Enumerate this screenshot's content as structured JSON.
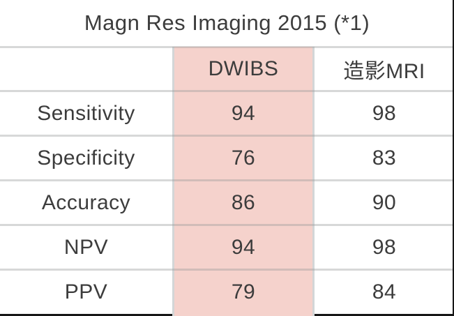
{
  "title": "Magn Res Imaging 2015 (*1)",
  "chart_data": {
    "type": "table",
    "title": "Magn Res Imaging 2015 (*1)",
    "columns": [
      "DWIBS",
      "造影MRI"
    ],
    "row_labels": [
      "Sensitivity",
      "Specificity",
      "Accuracy",
      "NPV",
      "PPV"
    ],
    "series": [
      {
        "name": "DWIBS",
        "values": [
          94,
          76,
          86,
          94,
          79
        ],
        "highlighted": true
      },
      {
        "name": "造影MRI",
        "values": [
          98,
          83,
          90,
          98,
          84
        ],
        "highlighted": false
      }
    ],
    "layout": {
      "highlight_column": "DWIBS",
      "grid": "horizontal-lines"
    }
  },
  "colors": {
    "highlight_column_bg": "#f5d2cc",
    "grid_line": "#d7d8d8",
    "column_divider": "#d3d6d7",
    "text": "#3c3c3c",
    "frame_edge": "#161616",
    "background": "#ffffff"
  }
}
